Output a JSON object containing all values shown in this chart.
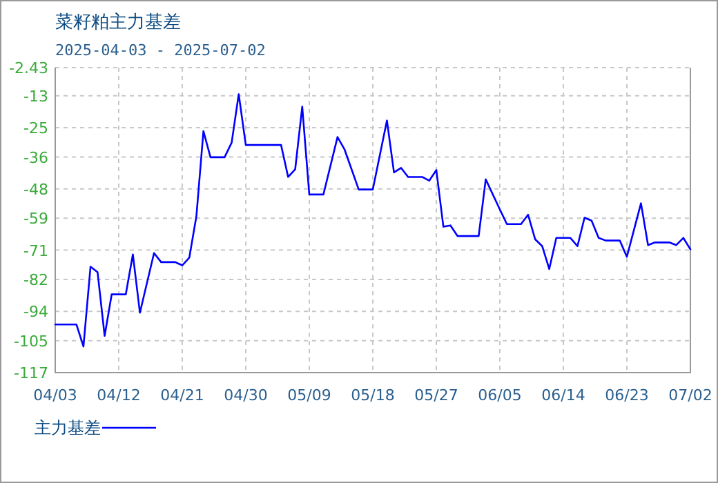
{
  "chart_data": {
    "type": "line",
    "title": "菜籽粕主力基差",
    "subtitle": "2025-04-03 - 2025-07-02",
    "x": [
      "2025-04-03",
      "2025-04-06",
      "2025-04-07",
      "2025-04-08",
      "2025-04-09",
      "2025-04-10",
      "2025-04-11",
      "2025-04-13",
      "2025-04-14",
      "2025-04-15",
      "2025-04-17",
      "2025-04-18",
      "2025-04-20",
      "2025-04-21",
      "2025-04-22",
      "2025-04-23",
      "2025-04-24",
      "2025-04-25",
      "2025-04-27",
      "2025-04-28",
      "2025-04-29",
      "2025-04-30",
      "2025-05-05",
      "2025-05-06",
      "2025-05-07",
      "2025-05-08",
      "2025-05-09",
      "2025-05-11",
      "2025-05-13",
      "2025-05-14",
      "2025-05-16",
      "2025-05-18",
      "2025-05-20",
      "2025-05-21",
      "2025-05-22",
      "2025-05-23",
      "2025-05-25",
      "2025-05-26",
      "2025-05-27",
      "2025-05-28",
      "2025-05-29",
      "2025-05-30",
      "2025-06-02",
      "2025-06-03",
      "2025-06-05",
      "2025-06-06",
      "2025-06-08",
      "2025-06-09",
      "2025-06-10",
      "2025-06-11",
      "2025-06-12",
      "2025-06-13",
      "2025-06-15",
      "2025-06-16",
      "2025-06-17",
      "2025-06-18",
      "2025-06-19",
      "2025-06-20",
      "2025-06-22",
      "2025-06-23",
      "2025-06-25",
      "2025-06-26",
      "2025-06-27",
      "2025-06-29",
      "2025-06-30",
      "2025-07-01",
      "2025-07-02"
    ],
    "series": [
      {
        "name": "主力基差",
        "color": "#0000ff",
        "values": [
          -98.9,
          -98.9,
          -107.2,
          -77.2,
          -79.3,
          -103.2,
          -87.6,
          -87.6,
          -72.6,
          -94.5,
          -72.1,
          -75.5,
          -75.5,
          -76.7,
          -73.8,
          -58.3,
          -26.3,
          -36.1,
          -36.1,
          -30.6,
          -12.4,
          -31.5,
          -31.5,
          -43.5,
          -40.6,
          -17.1,
          -50.1,
          -50.1,
          -28.5,
          -33.2,
          -48.2,
          -48.2,
          -22.3,
          -41.8,
          -40.1,
          -43.5,
          -43.5,
          -44.9,
          -40.9,
          -62.2,
          -61.7,
          -65.7,
          -65.7,
          -44.4,
          -55.7,
          -61.2,
          -61.2,
          -57.7,
          -66.9,
          -69.5,
          -78.1,
          -66.4,
          -66.4,
          -69.5,
          -58.8,
          -59.9,
          -66.4,
          -67.4,
          -67.4,
          -73.5,
          -53.4,
          -69.1,
          -68.1,
          -68.1,
          -69.1,
          -66.4,
          -70.7
        ]
      }
    ],
    "xlim": [
      "2025-04-03",
      "2025-07-02"
    ],
    "xticks": [
      {
        "value": "2025-04-03",
        "label": "04/03"
      },
      {
        "value": "2025-04-12",
        "label": "04/12"
      },
      {
        "value": "2025-04-21",
        "label": "04/21"
      },
      {
        "value": "2025-04-30",
        "label": "04/30"
      },
      {
        "value": "2025-05-09",
        "label": "05/09"
      },
      {
        "value": "2025-05-18",
        "label": "05/18"
      },
      {
        "value": "2025-05-27",
        "label": "05/27"
      },
      {
        "value": "2025-06-05",
        "label": "06/05"
      },
      {
        "value": "2025-06-14",
        "label": "06/14"
      },
      {
        "value": "2025-06-23",
        "label": "06/23"
      },
      {
        "value": "2025-07-02",
        "label": "07/02"
      }
    ],
    "ylim": [
      -117,
      -2.43
    ],
    "yticks": [
      -2.43,
      -13,
      -25,
      -36,
      -48,
      -59,
      -71,
      -82,
      -94,
      -105,
      -117
    ],
    "grid": true,
    "legend": "bottom left",
    "line_style": "solid",
    "marker": "none"
  }
}
